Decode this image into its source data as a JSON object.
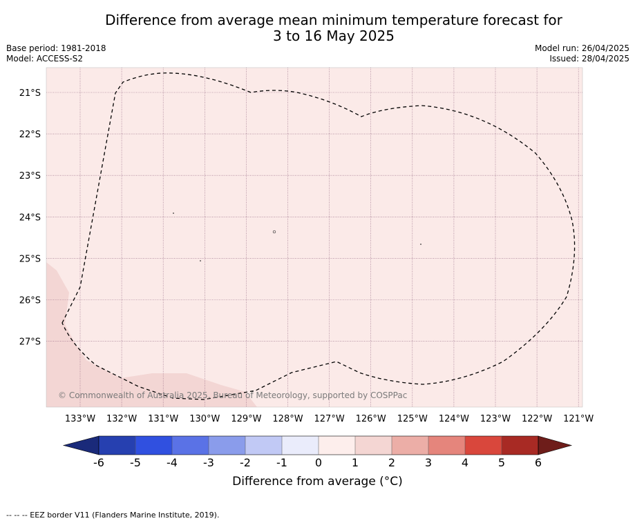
{
  "title_line1": "Difference from average mean minimum temperature forecast for",
  "title_line2": "3 to 16 May 2025",
  "base_period": "Base period: 1981-2018",
  "model": "Model: ACCESS-S2",
  "model_run": "Model run: 26/04/2025",
  "issued": "Issued: 28/04/2025",
  "copyright": "© Commonwealth of Australia 2025, Bureau of Meteorology, supported by COSPPac",
  "lat_labels": [
    "21°S",
    "22°S",
    "23°S",
    "24°S",
    "25°S",
    "26°S",
    "27°S"
  ],
  "lon_labels": [
    "133°W",
    "132°W",
    "131°W",
    "130°W",
    "129°W",
    "128°W",
    "127°W",
    "126°W",
    "125°W",
    "124°W",
    "123°W",
    "122°W",
    "121°W"
  ],
  "colorbar": {
    "ticks": [
      "-6",
      "-5",
      "-4",
      "-3",
      "-2",
      "-1",
      "0",
      "1",
      "2",
      "3",
      "4",
      "5",
      "6"
    ],
    "colors": [
      "#2640b0",
      "#3050e0",
      "#5a72e6",
      "#8a9ceb",
      "#c1c9f5",
      "#eaecfb",
      "#fdeeec",
      "#f4d6d3",
      "#ecaea7",
      "#e5857c",
      "#d9473c",
      "#a82a24"
    ],
    "low_extend_color": "#1a2a7a",
    "high_extend_color": "#6e1d1a",
    "label": "Difference from average (°C)"
  },
  "map_fill_color": "#fbeae8",
  "land_fill_color": "#f3d6d4",
  "footer": "--  --  -- EEZ border V11 (Flanders Marine Institute, 2019)."
}
